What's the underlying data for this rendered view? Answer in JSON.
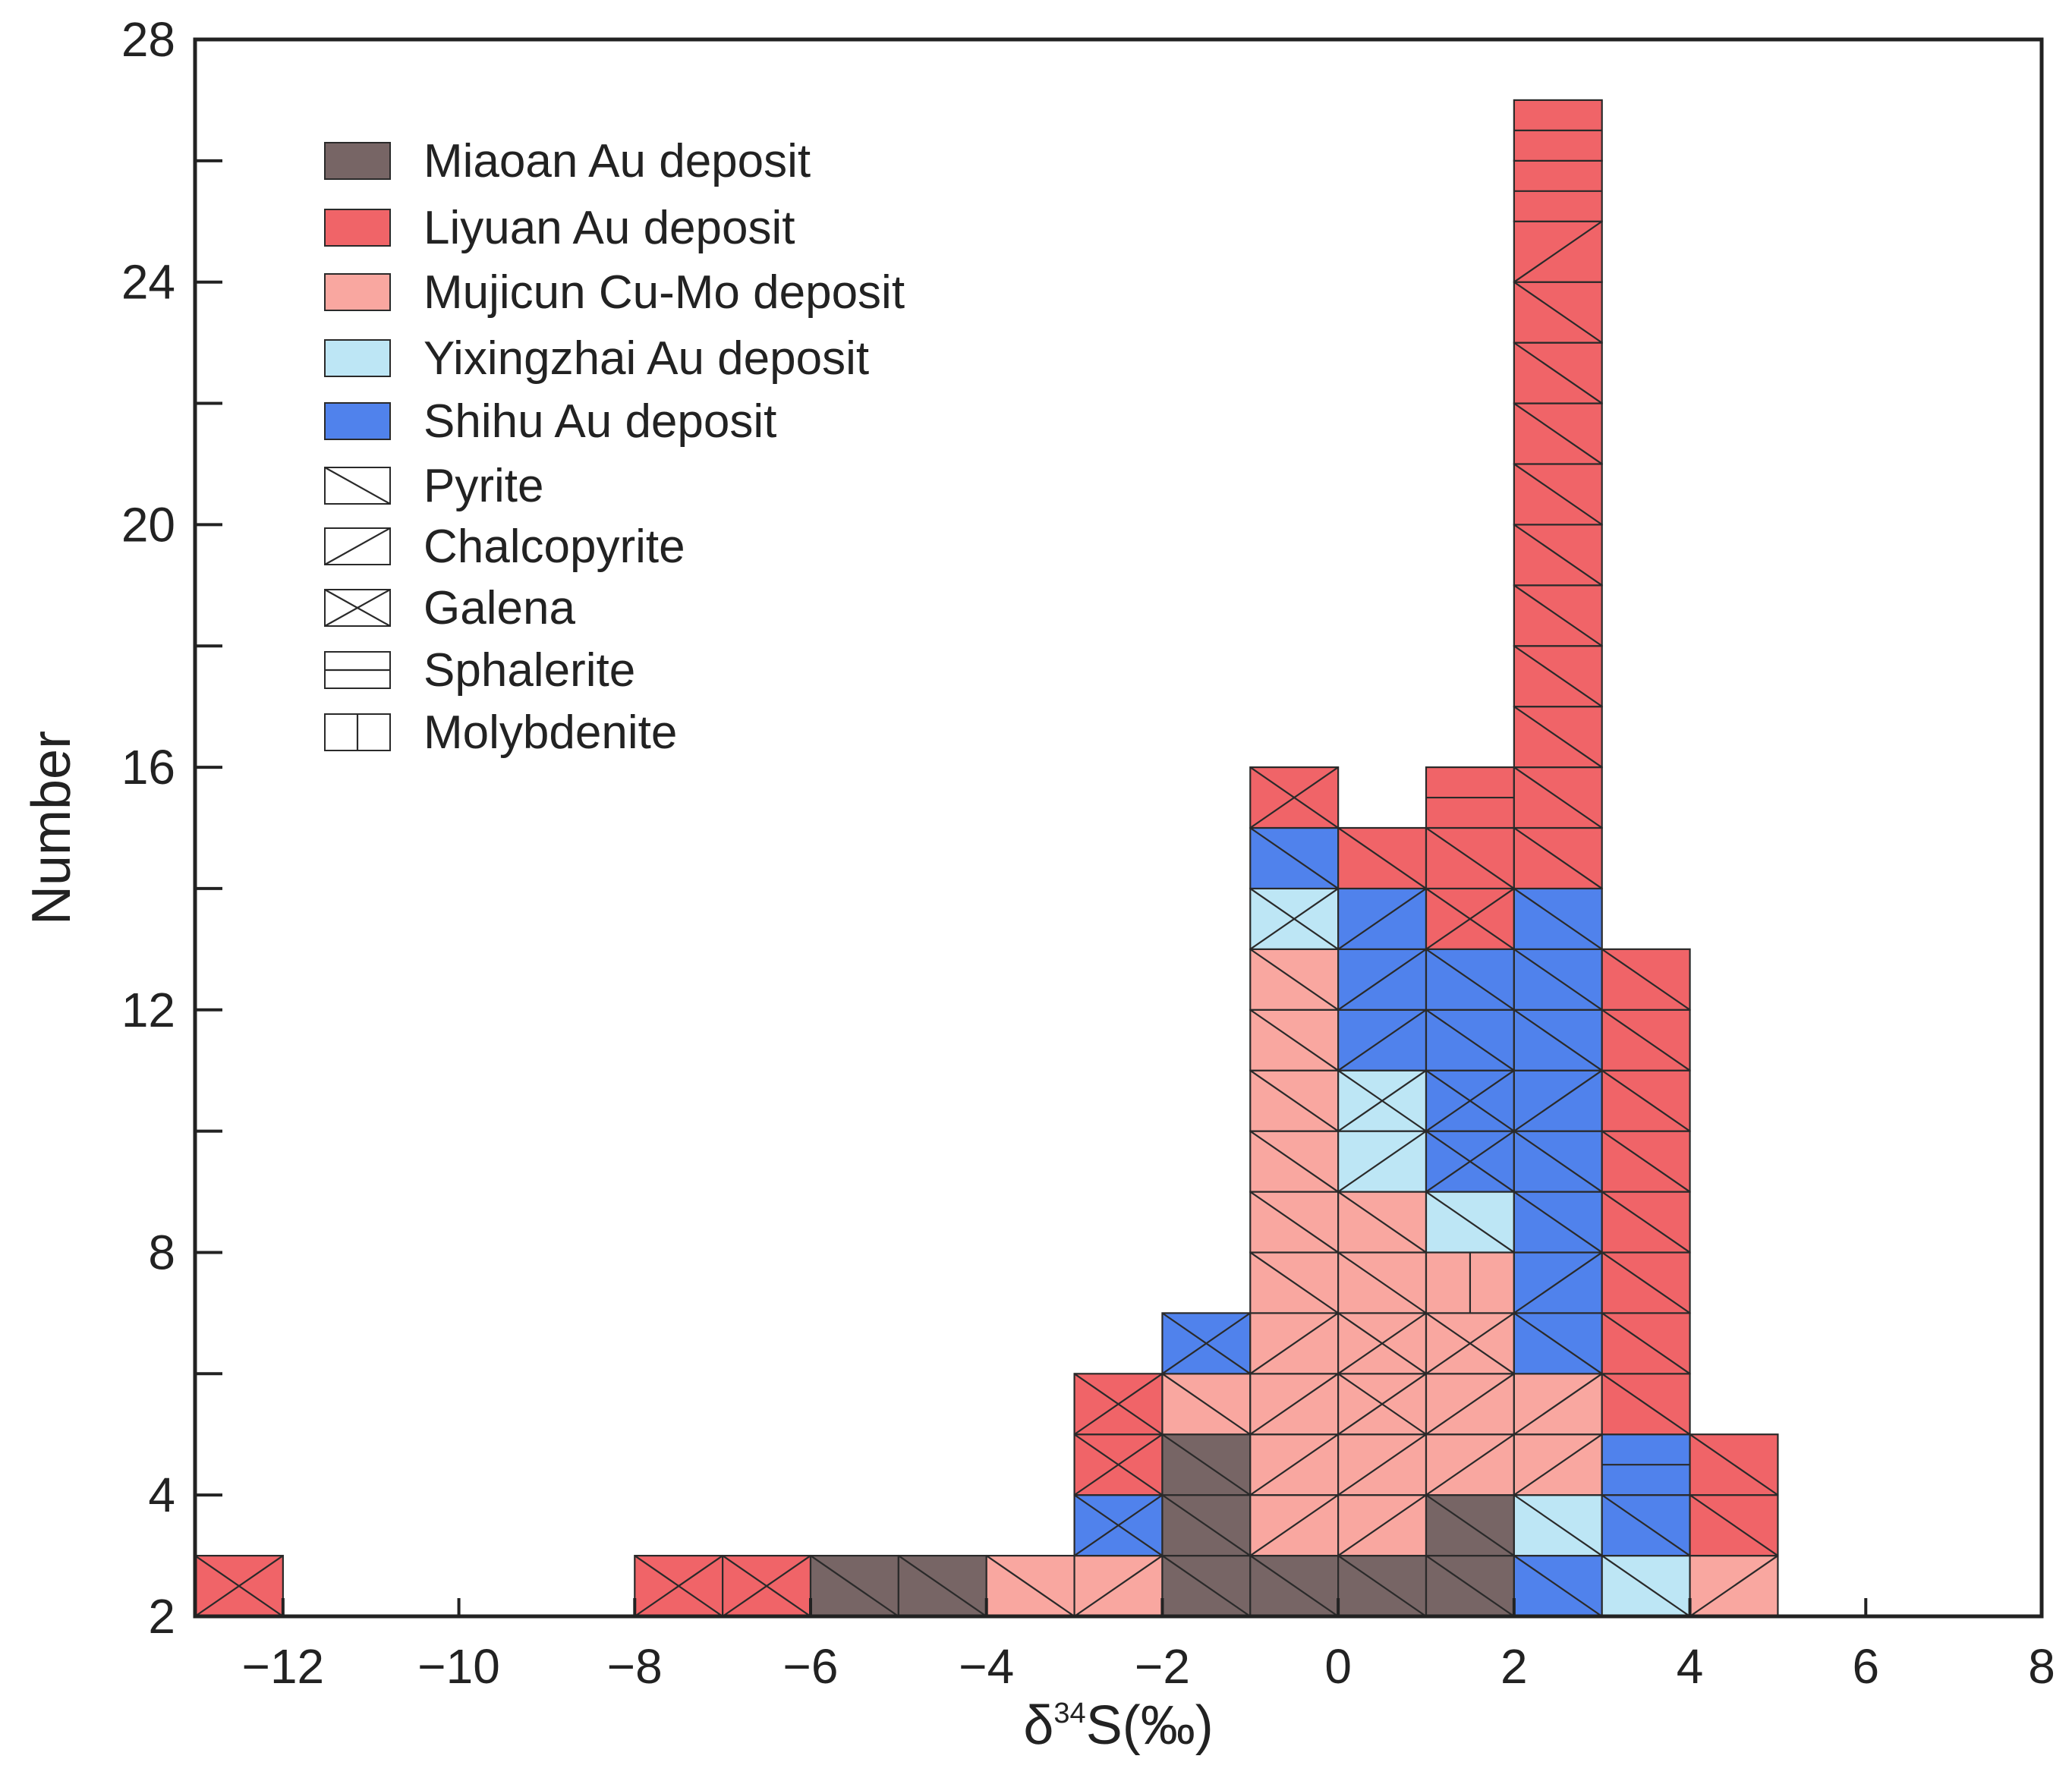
{
  "chart_data": {
    "type": "stacked-histogram",
    "xlabel": {
      "prefix": "δ",
      "sup": "34",
      "suffix": "S(‰)"
    },
    "ylabel": "Number",
    "xlim": [
      -13,
      8
    ],
    "ylim": [
      2,
      28
    ],
    "bin_width": 1,
    "x_ticks": [
      -12,
      -10,
      -8,
      -6,
      -4,
      -2,
      0,
      2,
      4,
      6,
      8
    ],
    "x_tick_labels": [
      "−12",
      "−10",
      "−8",
      "−6",
      "−4",
      "−2",
      "0",
      "2",
      "4",
      "6",
      "8"
    ],
    "y_ticks": [
      2,
      4,
      8,
      12,
      16,
      20,
      24,
      28
    ],
    "y_tick_labels": [
      "2",
      "4",
      "8",
      "12",
      "16",
      "20",
      "24",
      "28"
    ],
    "y_minor_ticks": [
      6,
      10,
      14,
      18,
      22,
      26
    ],
    "deposits": {
      "miaoan": {
        "name": "Miaoan Au deposit",
        "color": "#776565"
      },
      "liyuan": {
        "name": "Liyuan Au deposit",
        "color": "#f06468"
      },
      "mujicun": {
        "name": "Mujicun Cu-Mo deposit",
        "color": "#f9a7a0"
      },
      "yixingzhai": {
        "name": "Yixingzhai Au deposit",
        "color": "#bde6f5"
      },
      "shihu": {
        "name": "Shihu Au deposit",
        "color": "#5082ec"
      }
    },
    "minerals": {
      "py": "Pyrite",
      "cp": "Chalcopyrite",
      "gn": "Galena",
      "sp": "Sphalerite",
      "mo": "Molybdenite"
    },
    "legend": {
      "position": "top-left",
      "deposit_order": [
        "miaoan",
        "liyuan",
        "mujicun",
        "yixingzhai",
        "shihu"
      ],
      "mineral_order": [
        "py",
        "cp",
        "gn",
        "sp",
        "mo"
      ]
    },
    "bins": [
      {
        "x0": -13,
        "cells": [
          [
            "liyuan",
            "gn"
          ]
        ]
      },
      {
        "x0": -8,
        "cells": [
          [
            "liyuan",
            "gn"
          ]
        ]
      },
      {
        "x0": -7,
        "cells": [
          [
            "liyuan",
            "gn"
          ]
        ]
      },
      {
        "x0": -6,
        "cells": [
          [
            "miaoan",
            "py"
          ]
        ]
      },
      {
        "x0": -5,
        "cells": [
          [
            "miaoan",
            "py"
          ]
        ]
      },
      {
        "x0": -4,
        "cells": [
          [
            "mujicun",
            "py"
          ]
        ]
      },
      {
        "x0": -3,
        "cells": [
          [
            "mujicun",
            "cp"
          ],
          [
            "shihu",
            "gn"
          ],
          [
            "liyuan",
            "gn"
          ],
          [
            "liyuan",
            "gn"
          ]
        ]
      },
      {
        "x0": -2,
        "cells": [
          [
            "miaoan",
            "py"
          ],
          [
            "miaoan",
            "py"
          ],
          [
            "miaoan",
            "py"
          ],
          [
            "mujicun",
            "py"
          ],
          [
            "shihu",
            "gn"
          ]
        ]
      },
      {
        "x0": -1,
        "cells": [
          [
            "miaoan",
            "py"
          ],
          [
            "mujicun",
            "cp"
          ],
          [
            "mujicun",
            "cp"
          ],
          [
            "mujicun",
            "cp"
          ],
          [
            "mujicun",
            "cp"
          ],
          [
            "mujicun",
            "py"
          ],
          [
            "mujicun",
            "py"
          ],
          [
            "mujicun",
            "py"
          ],
          [
            "mujicun",
            "py"
          ],
          [
            "mujicun",
            "py"
          ],
          [
            "mujicun",
            "py"
          ],
          [
            "yixingzhai",
            "gn"
          ],
          [
            "shihu",
            "py"
          ],
          [
            "liyuan",
            "gn"
          ]
        ]
      },
      {
        "x0": 0,
        "cells": [
          [
            "miaoan",
            "py"
          ],
          [
            "mujicun",
            "cp"
          ],
          [
            "mujicun",
            "cp"
          ],
          [
            "mujicun",
            "gn"
          ],
          [
            "mujicun",
            "gn"
          ],
          [
            "mujicun",
            "py"
          ],
          [
            "mujicun",
            "py"
          ],
          [
            "yixingzhai",
            "cp"
          ],
          [
            "yixingzhai",
            "gn"
          ],
          [
            "shihu",
            "cp"
          ],
          [
            "shihu",
            "cp"
          ],
          [
            "shihu",
            "cp"
          ],
          [
            "liyuan",
            "py"
          ]
        ]
      },
      {
        "x0": 1,
        "cells": [
          [
            "miaoan",
            "py"
          ],
          [
            "miaoan",
            "py"
          ],
          [
            "mujicun",
            "cp"
          ],
          [
            "mujicun",
            "cp"
          ],
          [
            "mujicun",
            "gn"
          ],
          [
            "mujicun",
            "mo"
          ],
          [
            "yixingzhai",
            "py"
          ],
          [
            "shihu",
            "gn"
          ],
          [
            "shihu",
            "gn"
          ],
          [
            "shihu",
            "py"
          ],
          [
            "shihu",
            "py"
          ],
          [
            "liyuan",
            "gn"
          ],
          [
            "liyuan",
            "py"
          ],
          [
            "liyuan",
            "sp"
          ]
        ]
      },
      {
        "x0": 2,
        "cells": [
          [
            "shihu",
            "py"
          ],
          [
            "yixingzhai",
            "py"
          ],
          [
            "mujicun",
            "cp"
          ],
          [
            "mujicun",
            "cp"
          ],
          [
            "shihu",
            "py"
          ],
          [
            "shihu",
            "cp"
          ],
          [
            "shihu",
            "py"
          ],
          [
            "shihu",
            "py"
          ],
          [
            "shihu",
            "cp"
          ],
          [
            "shihu",
            "py"
          ],
          [
            "shihu",
            "py"
          ],
          [
            "shihu",
            "py"
          ],
          [
            "liyuan",
            "py"
          ],
          [
            "liyuan",
            "py"
          ],
          [
            "liyuan",
            "py"
          ],
          [
            "liyuan",
            "py"
          ],
          [
            "liyuan",
            "py"
          ],
          [
            "liyuan",
            "py"
          ],
          [
            "liyuan",
            "py"
          ],
          [
            "liyuan",
            "py"
          ],
          [
            "liyuan",
            "py"
          ],
          [
            "liyuan",
            "py"
          ],
          [
            "liyuan",
            "cp"
          ],
          [
            "liyuan",
            "sp"
          ],
          [
            "liyuan",
            "sp"
          ]
        ]
      },
      {
        "x0": 3,
        "cells": [
          [
            "yixingzhai",
            "py"
          ],
          [
            "shihu",
            "py"
          ],
          [
            "shihu",
            "sp"
          ],
          [
            "liyuan",
            "py"
          ],
          [
            "liyuan",
            "py"
          ],
          [
            "liyuan",
            "py"
          ],
          [
            "liyuan",
            "py"
          ],
          [
            "liyuan",
            "py"
          ],
          [
            "liyuan",
            "py"
          ],
          [
            "liyuan",
            "py"
          ],
          [
            "liyuan",
            "py"
          ]
        ]
      },
      {
        "x0": 4,
        "cells": [
          [
            "mujicun",
            "cp"
          ],
          [
            "liyuan",
            "py"
          ],
          [
            "liyuan",
            "py"
          ]
        ]
      }
    ]
  }
}
